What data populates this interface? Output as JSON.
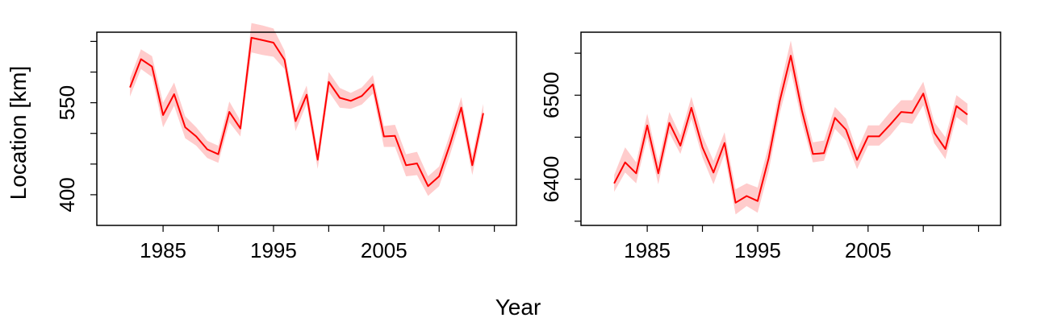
{
  "figure": {
    "shared_xlabel": "Year",
    "shared_ylabel": "Location [km]"
  },
  "chart_data": [
    {
      "type": "line",
      "title": "",
      "xlabel": "",
      "ylabel": "",
      "xlim": [
        1979,
        2017
      ],
      "ylim": [
        350,
        665
      ],
      "xticks": [
        1985,
        1990,
        1995,
        2000,
        2005,
        2010,
        2015
      ],
      "xtick_labels": [
        "1985",
        "",
        "1995",
        "",
        "2005",
        "",
        ""
      ],
      "yticks": [
        400,
        450,
        500,
        550,
        600,
        650
      ],
      "ytick_labels": [
        "400",
        "",
        "",
        "550",
        "",
        ""
      ],
      "line_color": "#ff0000",
      "band_color": "#ffcccc",
      "grid": false,
      "series": [
        {
          "x": [
            1982,
            1983,
            1984,
            1985,
            1986,
            1987,
            1988,
            1989,
            1990,
            1991,
            1992,
            1993,
            1994,
            1995,
            1996,
            1997,
            1998,
            1999,
            2000,
            2001,
            2002,
            2003,
            2004,
            2005,
            2006,
            2007,
            2008,
            2009,
            2010,
            2011,
            2012,
            2013,
            2014
          ],
          "y": [
            575,
            621,
            609,
            530,
            564,
            510,
            495,
            474,
            466,
            535,
            508,
            656,
            652,
            648,
            620,
            520,
            563,
            457,
            584,
            558,
            553,
            561,
            580,
            495,
            496,
            448,
            451,
            414,
            430,
            483,
            542,
            448,
            533
          ],
          "lower": [
            560,
            605,
            592,
            510,
            545,
            492,
            480,
            460,
            452,
            518,
            495,
            632,
            628,
            625,
            605,
            504,
            548,
            442,
            568,
            542,
            540,
            547,
            565,
            478,
            478,
            430,
            432,
            398,
            414,
            466,
            525,
            432,
            518
          ],
          "upper": [
            590,
            637,
            626,
            550,
            583,
            528,
            510,
            488,
            480,
            552,
            521,
            680,
            676,
            671,
            635,
            536,
            578,
            472,
            600,
            574,
            566,
            575,
            595,
            512,
            514,
            466,
            470,
            430,
            446,
            500,
            559,
            464,
            548
          ]
        }
      ]
    },
    {
      "type": "line",
      "title": "",
      "xlabel": "",
      "ylabel": "",
      "xlim": [
        1979,
        2017
      ],
      "ylim": [
        6345,
        6575
      ],
      "xticks": [
        1985,
        1990,
        1995,
        2000,
        2005,
        2010,
        2015
      ],
      "xtick_labels": [
        "1985",
        "",
        "1995",
        "",
        "2005",
        "",
        ""
      ],
      "yticks": [
        6350,
        6400,
        6450,
        6500,
        6550
      ],
      "ytick_labels": [
        "",
        "6400",
        "",
        "6500",
        ""
      ],
      "line_color": "#ff0000",
      "band_color": "#ffcccc",
      "grid": false,
      "series": [
        {
          "x": [
            1982,
            1983,
            1984,
            1985,
            1986,
            1987,
            1988,
            1989,
            1990,
            1991,
            1992,
            1993,
            1994,
            1995,
            1996,
            1997,
            1998,
            1999,
            2000,
            2001,
            2002,
            2003,
            2004,
            2005,
            2006,
            2007,
            2008,
            2009,
            2010,
            2011,
            2012,
            2013,
            2014
          ],
          "y": [
            6395,
            6420,
            6407,
            6464,
            6407,
            6467,
            6440,
            6485,
            6438,
            6408,
            6443,
            6372,
            6380,
            6374,
            6425,
            6493,
            6547,
            6482,
            6430,
            6431,
            6473,
            6459,
            6423,
            6451,
            6451,
            6465,
            6480,
            6479,
            6502,
            6455,
            6436,
            6487,
            6477
          ],
          "lower": [
            6385,
            6408,
            6395,
            6450,
            6394,
            6455,
            6430,
            6472,
            6426,
            6394,
            6430,
            6358,
            6368,
            6360,
            6410,
            6478,
            6530,
            6468,
            6420,
            6422,
            6460,
            6446,
            6412,
            6440,
            6440,
            6452,
            6468,
            6466,
            6488,
            6443,
            6424,
            6474,
            6464
          ],
          "upper": [
            6405,
            6438,
            6420,
            6478,
            6420,
            6480,
            6452,
            6498,
            6452,
            6422,
            6456,
            6388,
            6395,
            6390,
            6440,
            6508,
            6565,
            6497,
            6444,
            6446,
            6486,
            6472,
            6434,
            6464,
            6464,
            6480,
            6494,
            6494,
            6516,
            6468,
            6450,
            6500,
            6490
          ]
        }
      ]
    }
  ]
}
